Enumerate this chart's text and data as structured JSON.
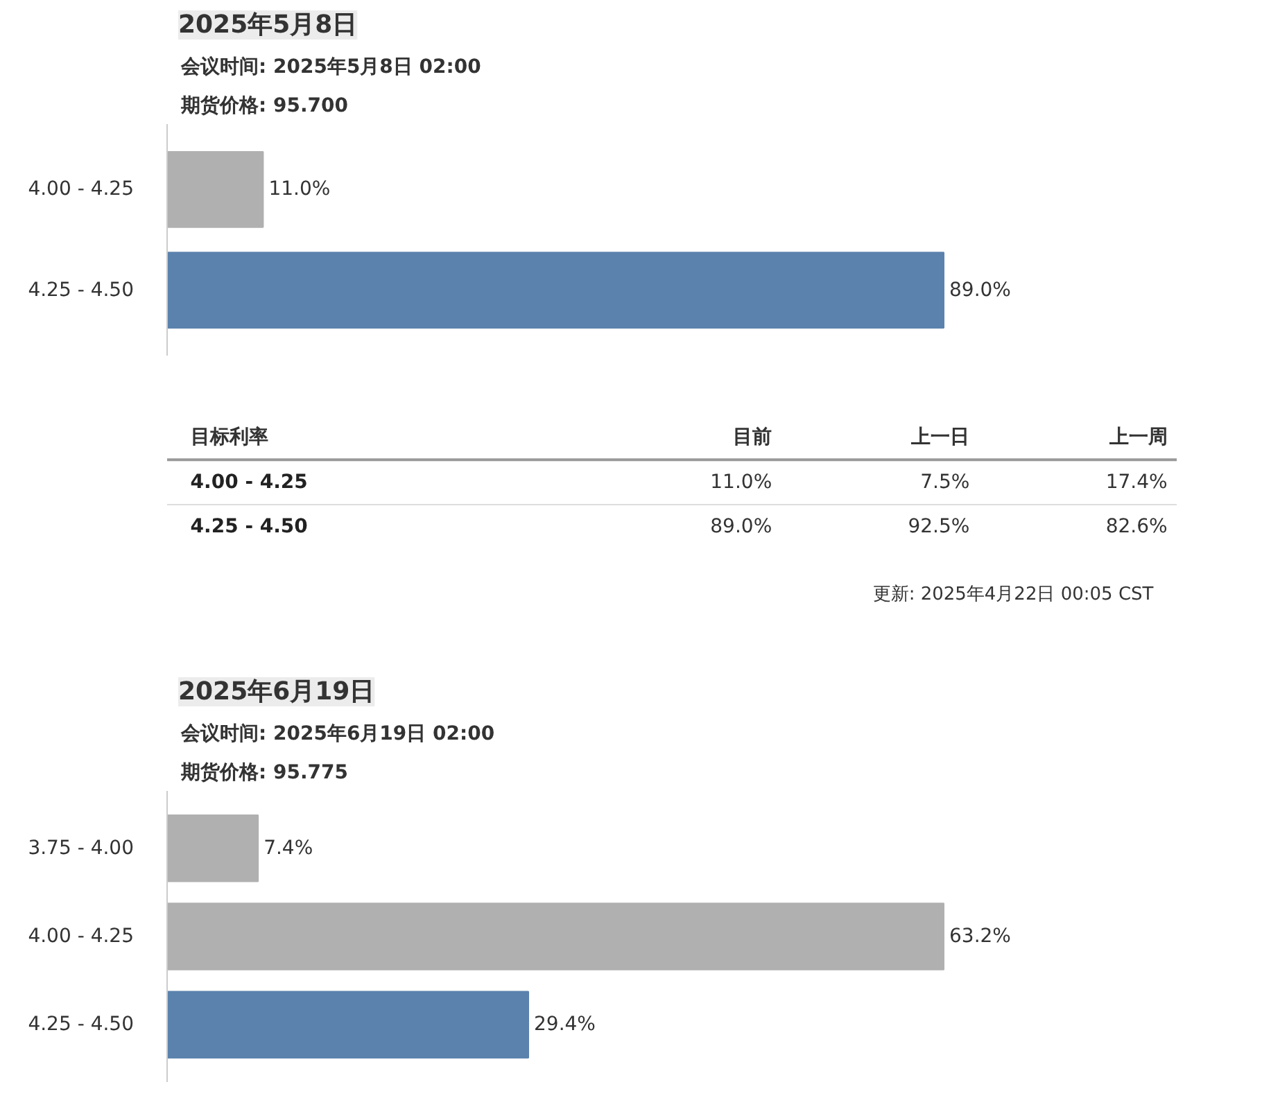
{
  "chart_data": [
    {
      "type": "bar",
      "orientation": "horizontal",
      "title": "2025年5月8日",
      "annotations": [
        "会议时间:  2025年5月8日 02:00",
        "期货价格:  95.700"
      ],
      "categories": [
        "4.00 - 4.25",
        "4.25 - 4.50"
      ],
      "values": [
        11.0,
        89.0
      ],
      "colors": [
        "#b0b0b0",
        "#5b82ad"
      ],
      "value_labels": [
        "11.0%",
        "89.0%"
      ],
      "tick_labels": "y",
      "grid": false
    },
    {
      "type": "other",
      "ylabel": "目标利率",
      "categories": [
        "4.00 - 4.25",
        "4.25 - 4.50"
      ],
      "series": [
        {
          "name": "目前",
          "values": [
            11.0,
            89.0
          ],
          "value_labels": [
            "11.0%",
            "89.0%"
          ]
        },
        {
          "name": "上一日",
          "values": [
            7.5,
            92.5
          ],
          "value_labels": [
            "7.5%",
            "92.5%"
          ]
        },
        {
          "name": "上一周",
          "values": [
            17.4,
            82.6
          ],
          "value_labels": [
            "17.4%",
            "82.6%"
          ]
        }
      ],
      "annotations": [
        "更新: 2025年4月22日 00:05 CST"
      ]
    },
    {
      "type": "bar",
      "orientation": "horizontal",
      "title": "2025年6月19日",
      "annotations": [
        "会议时间:  2025年6月19日 02:00",
        "期货价格:  95.775"
      ],
      "categories": [
        "3.75 - 4.00",
        "4.00 - 4.25",
        "4.25 - 4.50"
      ],
      "values": [
        7.4,
        63.2,
        29.4
      ],
      "colors": [
        "#b0b0b0",
        "#b0b0b0",
        "#5b82ad"
      ],
      "value_labels": [
        "7.4%",
        "63.2%",
        "29.4%"
      ],
      "tick_labels": "y",
      "grid": false
    }
  ]
}
